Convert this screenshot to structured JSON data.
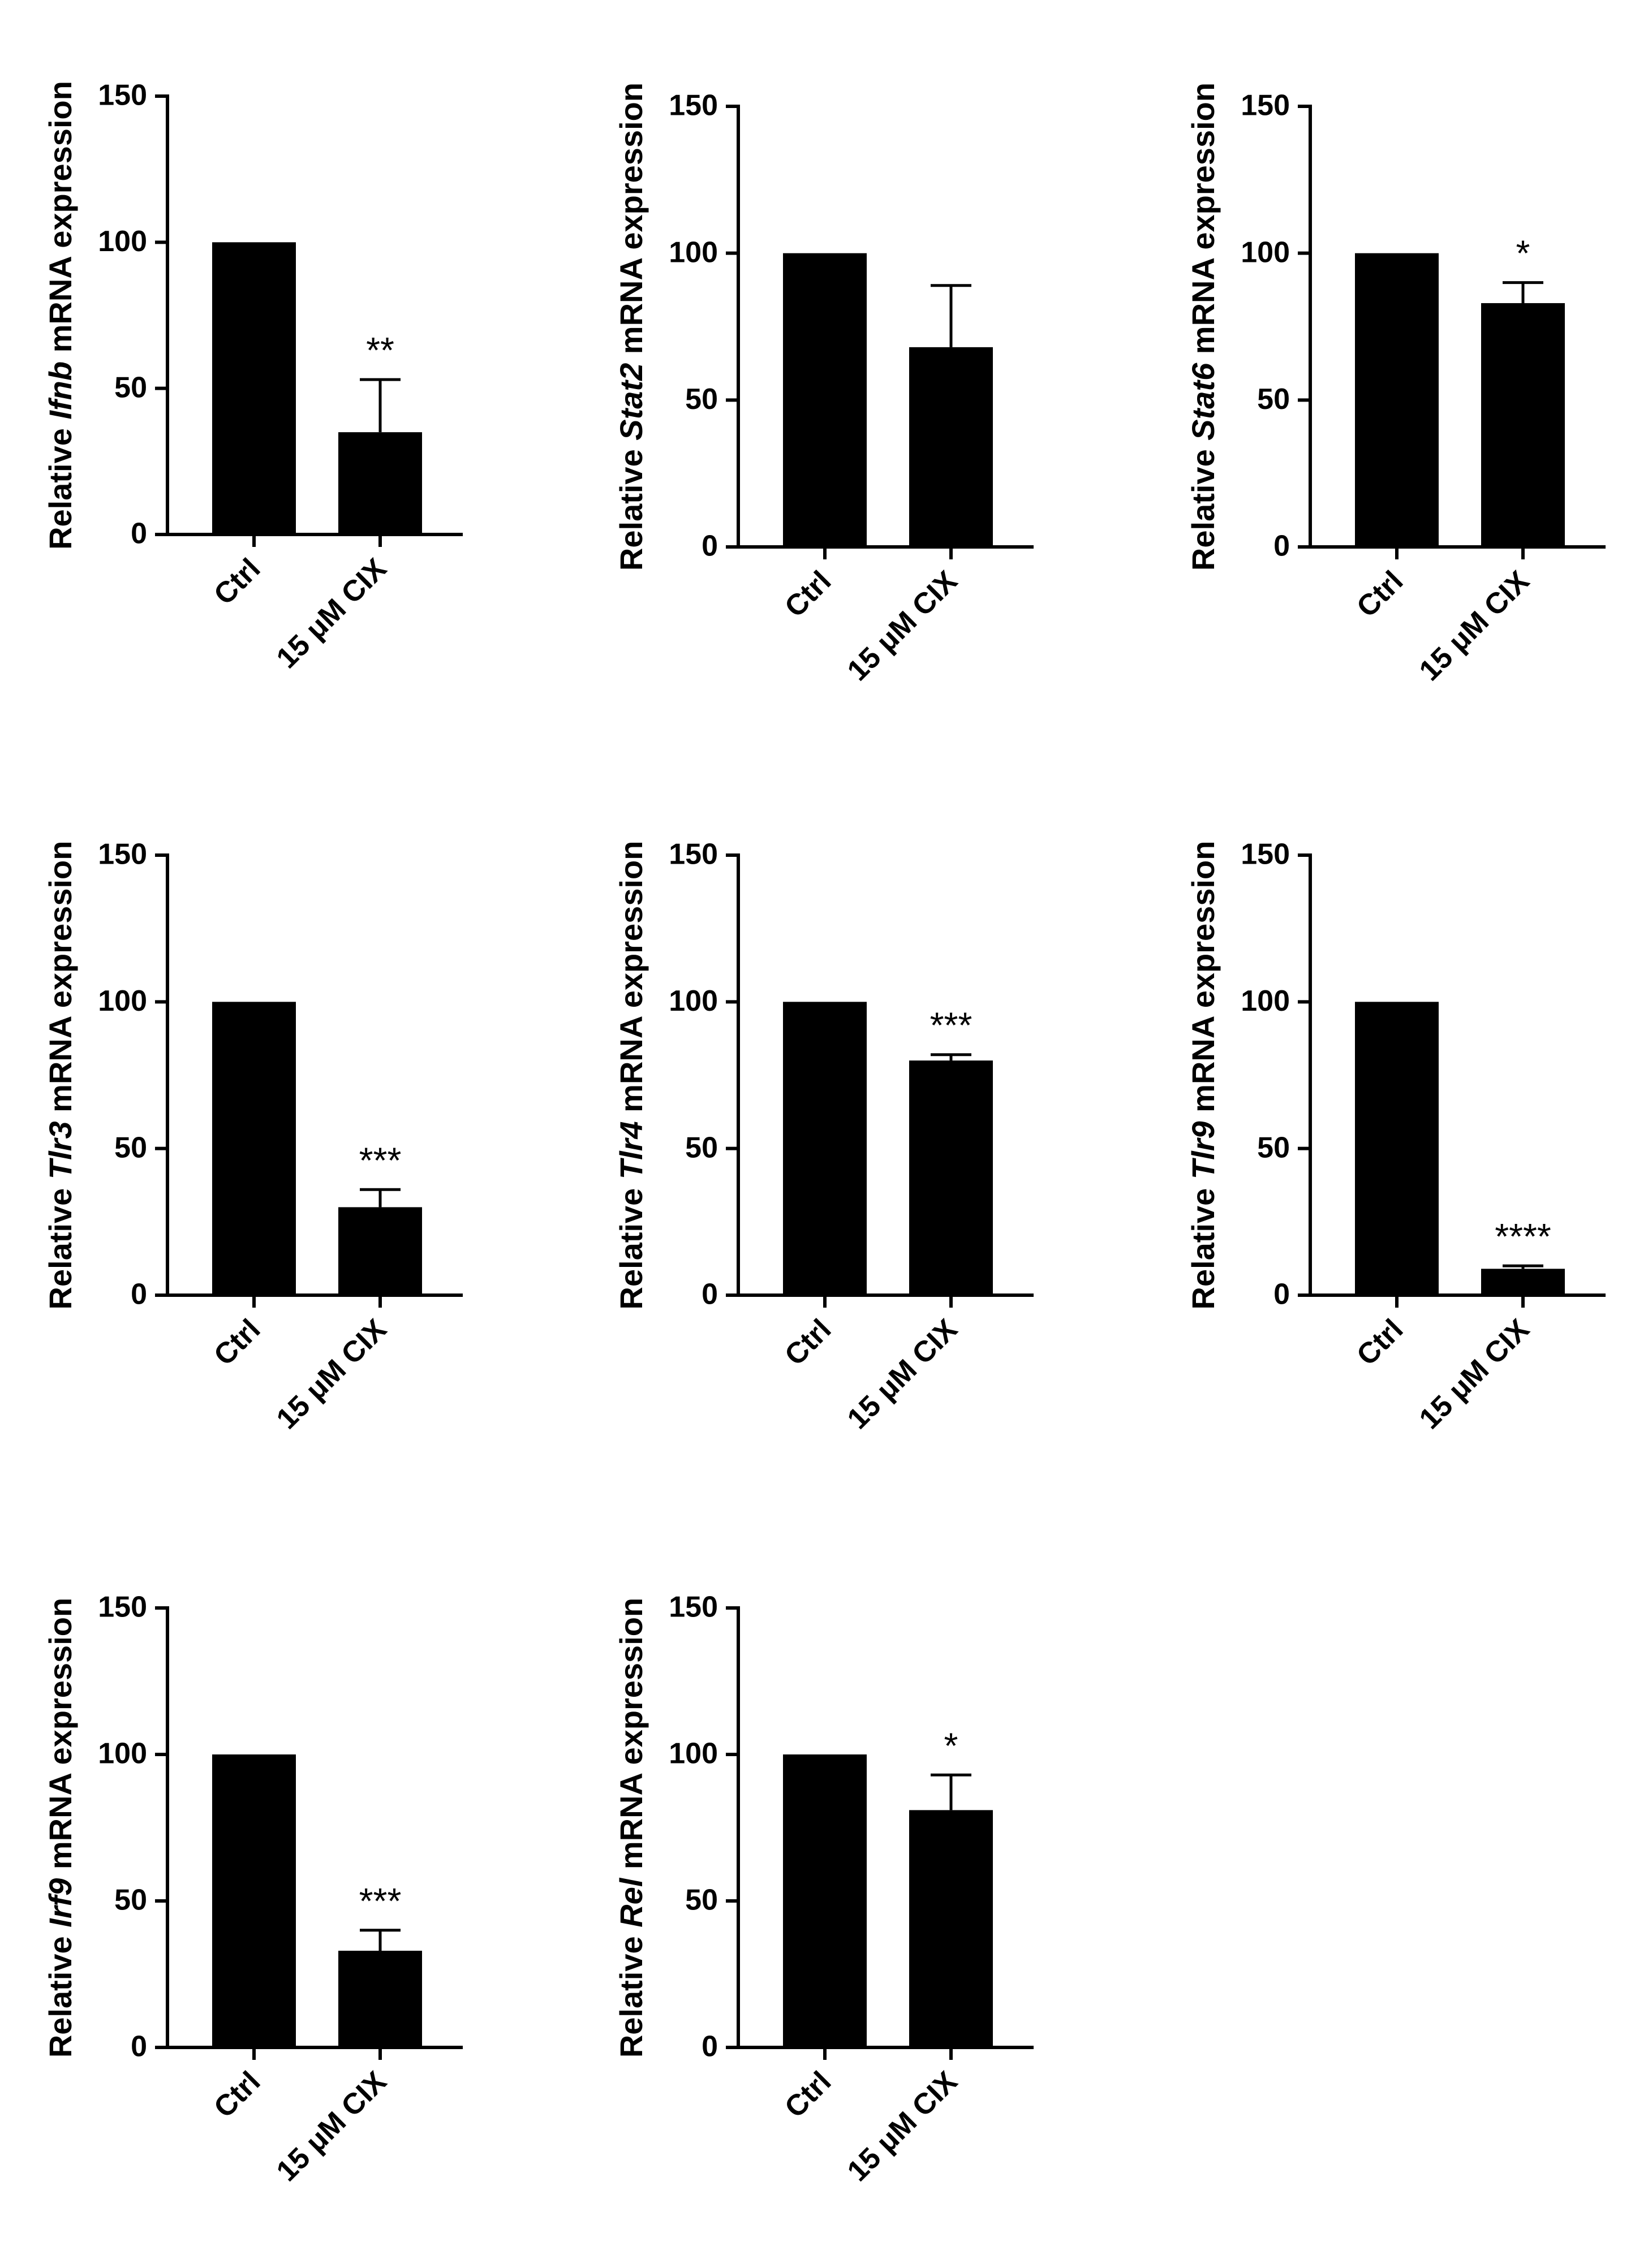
{
  "chart_data": [
    {
      "type": "bar",
      "gene": "Ifnb",
      "ylabel_prefix": "Relative ",
      "ylabel_suffix": " mRNA expression",
      "categories": [
        "Ctrl",
        "15 μM CIX"
      ],
      "values": [
        100,
        35
      ],
      "errors": [
        0,
        18
      ],
      "significance": [
        "",
        "**"
      ],
      "ylim": [
        0,
        150
      ],
      "yticks": [
        0,
        50,
        100,
        150
      ]
    },
    {
      "type": "bar",
      "gene": "Stat2",
      "ylabel_prefix": "Relative ",
      "ylabel_suffix": " mRNA expression",
      "categories": [
        "Ctrl",
        "15 μM CIX"
      ],
      "values": [
        100,
        68
      ],
      "errors": [
        0,
        21
      ],
      "significance": [
        "",
        ""
      ],
      "ylim": [
        0,
        150
      ],
      "yticks": [
        0,
        50,
        100,
        150
      ]
    },
    {
      "type": "bar",
      "gene": "Stat6",
      "ylabel_prefix": "Relative ",
      "ylabel_suffix": " mRNA expression",
      "categories": [
        "Ctrl",
        "15 μM CIX"
      ],
      "values": [
        100,
        83
      ],
      "errors": [
        0,
        7
      ],
      "significance": [
        "",
        "*"
      ],
      "ylim": [
        0,
        150
      ],
      "yticks": [
        0,
        50,
        100,
        150
      ]
    },
    {
      "type": "bar",
      "gene": "Tlr3",
      "ylabel_prefix": "Relative ",
      "ylabel_suffix": " mRNA expression",
      "categories": [
        "Ctrl",
        "15 μM CIX"
      ],
      "values": [
        100,
        30
      ],
      "errors": [
        0,
        6
      ],
      "significance": [
        "",
        "***"
      ],
      "ylim": [
        0,
        150
      ],
      "yticks": [
        0,
        50,
        100,
        150
      ]
    },
    {
      "type": "bar",
      "gene": "Tlr4",
      "ylabel_prefix": "Relative ",
      "ylabel_suffix": " mRNA expression",
      "categories": [
        "Ctrl",
        "15 μM CIX"
      ],
      "values": [
        100,
        80
      ],
      "errors": [
        0,
        2
      ],
      "significance": [
        "",
        "***"
      ],
      "ylim": [
        0,
        150
      ],
      "yticks": [
        0,
        50,
        100,
        150
      ]
    },
    {
      "type": "bar",
      "gene": "Tlr9",
      "ylabel_prefix": "Relative ",
      "ylabel_suffix": " mRNA expression",
      "categories": [
        "Ctrl",
        "15 μM CIX"
      ],
      "values": [
        100,
        9
      ],
      "errors": [
        0,
        1
      ],
      "significance": [
        "",
        "****"
      ],
      "ylim": [
        0,
        150
      ],
      "yticks": [
        0,
        50,
        100,
        150
      ]
    },
    {
      "type": "bar",
      "gene": "Irf9",
      "ylabel_prefix": "Relative ",
      "ylabel_suffix": " mRNA expression",
      "categories": [
        "Ctrl",
        "15 μM CIX"
      ],
      "values": [
        100,
        33
      ],
      "errors": [
        0,
        7
      ],
      "significance": [
        "",
        "***"
      ],
      "ylim": [
        0,
        150
      ],
      "yticks": [
        0,
        50,
        100,
        150
      ]
    },
    {
      "type": "bar",
      "gene": "Rel",
      "ylabel_prefix": "Relative ",
      "ylabel_suffix": " mRNA expression",
      "categories": [
        "Ctrl",
        "15 μM CIX"
      ],
      "values": [
        100,
        81
      ],
      "errors": [
        0,
        12
      ],
      "significance": [
        "",
        "*"
      ],
      "ylim": [
        0,
        150
      ],
      "yticks": [
        0,
        50,
        100,
        150
      ]
    }
  ]
}
